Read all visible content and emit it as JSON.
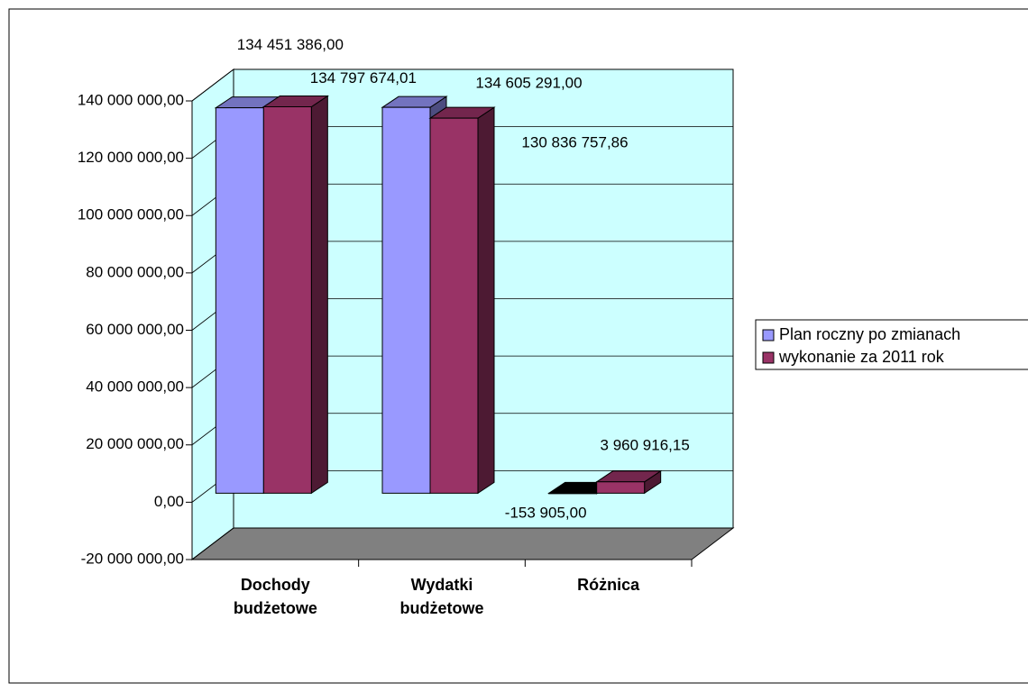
{
  "chart_data": {
    "type": "bar3d",
    "categories": [
      "Dochody budżetowe",
      "Wydatki budżetowe",
      "Różnica"
    ],
    "series": [
      {
        "name": "Plan roczny po zmianach",
        "color": "#9999ff",
        "values": [
          134451386.0,
          134605291.0,
          -153905.0
        ],
        "value_labels": [
          "134 451 386,00",
          "134 605 291,00",
          "-153 905,00"
        ]
      },
      {
        "name": "wykonanie za 2011 rok",
        "color": "#993366",
        "values": [
          134797674.01,
          130836757.86,
          3960916.15
        ],
        "value_labels": [
          "134 797 674,01",
          "130 836 757,86",
          "3 960 916,15"
        ]
      }
    ],
    "ylim": [
      -20000000,
      140000000
    ],
    "yticks": [
      {
        "value": -20000000,
        "label": "-20 000 000,00"
      },
      {
        "value": 0,
        "label": "0,00"
      },
      {
        "value": 20000000,
        "label": "20 000 000,00"
      },
      {
        "value": 40000000,
        "label": "40 000 000,00"
      },
      {
        "value": 60000000,
        "label": "60 000 000,00"
      },
      {
        "value": 80000000,
        "label": "80 000 000,00"
      },
      {
        "value": 100000000,
        "label": "100 000 000,00"
      },
      {
        "value": 120000000,
        "label": "120 000 000,00"
      },
      {
        "value": 140000000,
        "label": "140 000 000,00"
      }
    ],
    "grid": true,
    "legend": "right"
  }
}
